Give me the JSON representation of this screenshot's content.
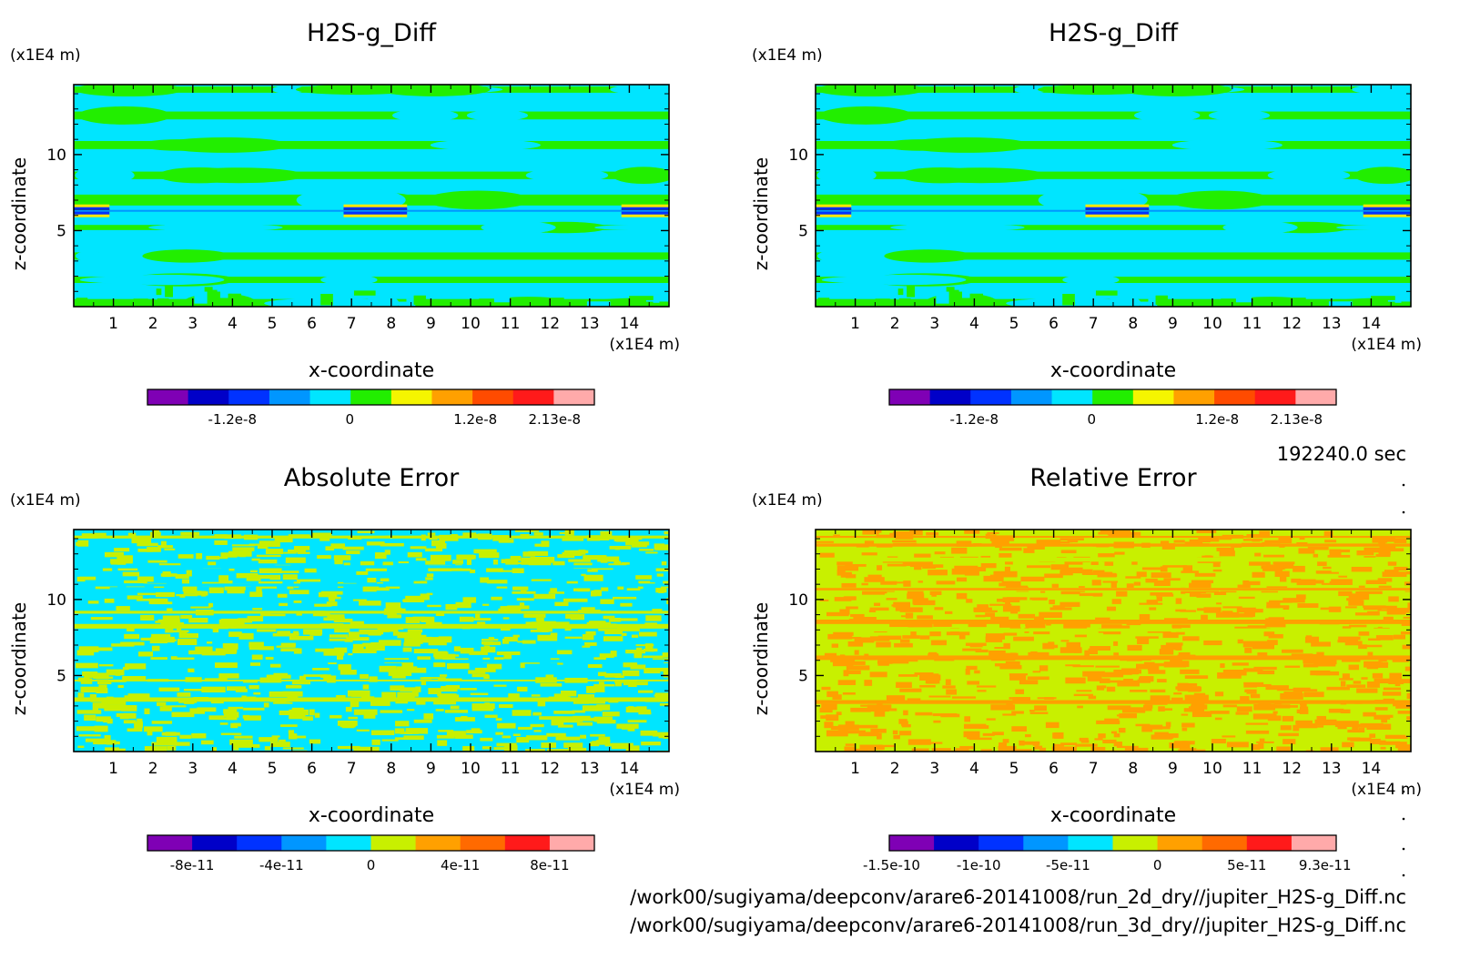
{
  "time_label": "192240.0 sec",
  "files": [
    "/work00/sugiyama/deepconv/arare6-20141008/run_2d_dry//jupiter_H2S-g_Diff.nc",
    "/work00/sugiyama/deepconv/arare6-20141008/run_3d_dry//jupiter_H2S-g_Diff.nc"
  ],
  "chart_data": [
    {
      "type": "heatmap",
      "title": "H2S-g_Diff",
      "xlabel": "x-coordinate",
      "ylabel": "z-coordinate",
      "x_unit": "(x1E4 m)",
      "y_unit": "(x1E4 m)",
      "xlim": [
        0,
        15
      ],
      "ylim": [
        0,
        14.6
      ],
      "x_ticks": [
        "1",
        "2",
        "3",
        "4",
        "5",
        "6",
        "7",
        "8",
        "9",
        "10",
        "11",
        "12",
        "13",
        "14"
      ],
      "y_ticks": [
        "5",
        "10"
      ],
      "pattern": "bands",
      "fill_colors": [
        "#00e5ff",
        "#22ee00"
      ],
      "colorbar": {
        "colors": [
          "#7f00b5",
          "#0000c8",
          "#0032ff",
          "#0096ff",
          "#00e5ff",
          "#22ee00",
          "#f5f500",
          "#ffa000",
          "#ff4b00",
          "#ff1a1a",
          "#ffaaaa"
        ],
        "tick_labels": [
          "-1.2e-8",
          "0",
          "1.2e-8",
          "2.13e-8"
        ]
      }
    },
    {
      "type": "heatmap",
      "title": "H2S-g_Diff",
      "xlabel": "x-coordinate",
      "ylabel": "z-coordinate",
      "x_unit": "(x1E4 m)",
      "y_unit": "(x1E4 m)",
      "xlim": [
        0,
        15
      ],
      "ylim": [
        0,
        14.6
      ],
      "x_ticks": [
        "1",
        "2",
        "3",
        "4",
        "5",
        "6",
        "7",
        "8",
        "9",
        "10",
        "11",
        "12",
        "13",
        "14"
      ],
      "y_ticks": [
        "5",
        "10"
      ],
      "pattern": "bands",
      "fill_colors": [
        "#00e5ff",
        "#22ee00"
      ],
      "colorbar": {
        "colors": [
          "#7f00b5",
          "#0000c8",
          "#0032ff",
          "#0096ff",
          "#00e5ff",
          "#22ee00",
          "#f5f500",
          "#ffa000",
          "#ff4b00",
          "#ff1a1a",
          "#ffaaaa"
        ],
        "tick_labels": [
          "-1.2e-8",
          "0",
          "1.2e-8",
          "2.13e-8"
        ]
      }
    },
    {
      "type": "heatmap",
      "title": "Absolute Error",
      "xlabel": "x-coordinate",
      "ylabel": "z-coordinate",
      "x_unit": "(x1E4 m)",
      "y_unit": "(x1E4 m)",
      "xlim": [
        0,
        15
      ],
      "ylim": [
        0,
        14.6
      ],
      "x_ticks": [
        "1",
        "2",
        "3",
        "4",
        "5",
        "6",
        "7",
        "8",
        "9",
        "10",
        "11",
        "12",
        "13",
        "14"
      ],
      "y_ticks": [
        "5",
        "10"
      ],
      "pattern": "noise",
      "fill_colors": [
        "#00e5ff",
        "#c8f000"
      ],
      "colorbar": {
        "colors": [
          "#7f00b5",
          "#0000c8",
          "#0032ff",
          "#0096ff",
          "#00e5ff",
          "#c8f000",
          "#ffa000",
          "#ff6a00",
          "#ff1a1a",
          "#ffaaaa"
        ],
        "tick_labels": [
          "-8e-11",
          "-4e-11",
          "0",
          "4e-11",
          "8e-11"
        ]
      }
    },
    {
      "type": "heatmap",
      "title": "Relative Error",
      "xlabel": "x-coordinate",
      "ylabel": "z-coordinate",
      "x_unit": "(x1E4 m)",
      "y_unit": "(x1E4 m)",
      "xlim": [
        0,
        15
      ],
      "ylim": [
        0,
        14.6
      ],
      "x_ticks": [
        "1",
        "2",
        "3",
        "4",
        "5",
        "6",
        "7",
        "8",
        "9",
        "10",
        "11",
        "12",
        "13",
        "14"
      ],
      "y_ticks": [
        "5",
        "10"
      ],
      "pattern": "noise",
      "fill_colors": [
        "#c8f000",
        "#ffa000"
      ],
      "colorbar": {
        "colors": [
          "#7f00b5",
          "#0000c8",
          "#0032ff",
          "#0096ff",
          "#00e5ff",
          "#c8f000",
          "#ffa000",
          "#ff6a00",
          "#ff1a1a",
          "#ffaaaa"
        ],
        "tick_labels": [
          "-1.5e-10",
          "-1e-10",
          "-5e-11",
          "0",
          "5e-11",
          "9.3e-11"
        ]
      }
    }
  ]
}
